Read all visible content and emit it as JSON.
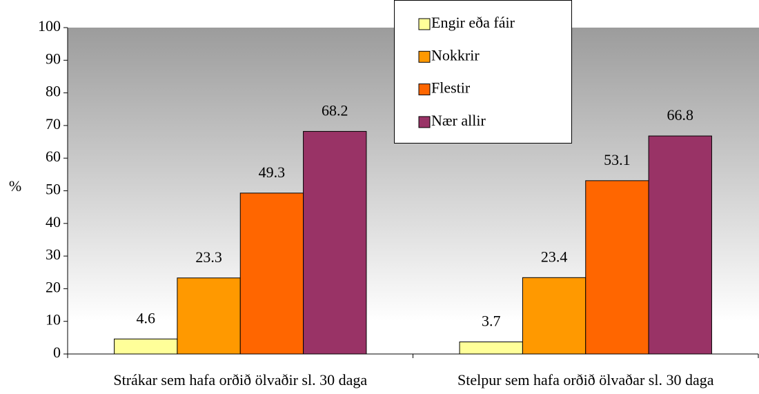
{
  "chart_data": {
    "type": "bar",
    "y_label": "%",
    "categories": [
      "Strákar sem hafa orðið ölvaðir sl. 30 daga",
      "Stelpur sem hafa orðið ölvaðar sl. 30 daga"
    ],
    "series": [
      {
        "name": "Engir eða fáir",
        "color": "#ffff99",
        "values": [
          4.6,
          3.7
        ]
      },
      {
        "name": "Nokkrir",
        "color": "#ff9900",
        "values": [
          23.3,
          23.4
        ]
      },
      {
        "name": "Flestir",
        "color": "#ff6600",
        "values": [
          49.3,
          53.1
        ]
      },
      {
        "name": "Nær allir",
        "color": "#993366",
        "values": [
          68.2,
          66.8
        ]
      }
    ],
    "ylim": [
      0,
      100
    ],
    "yticks": [
      0,
      10,
      20,
      30,
      40,
      50,
      60,
      70,
      80,
      90,
      100
    ],
    "legend": "top"
  }
}
